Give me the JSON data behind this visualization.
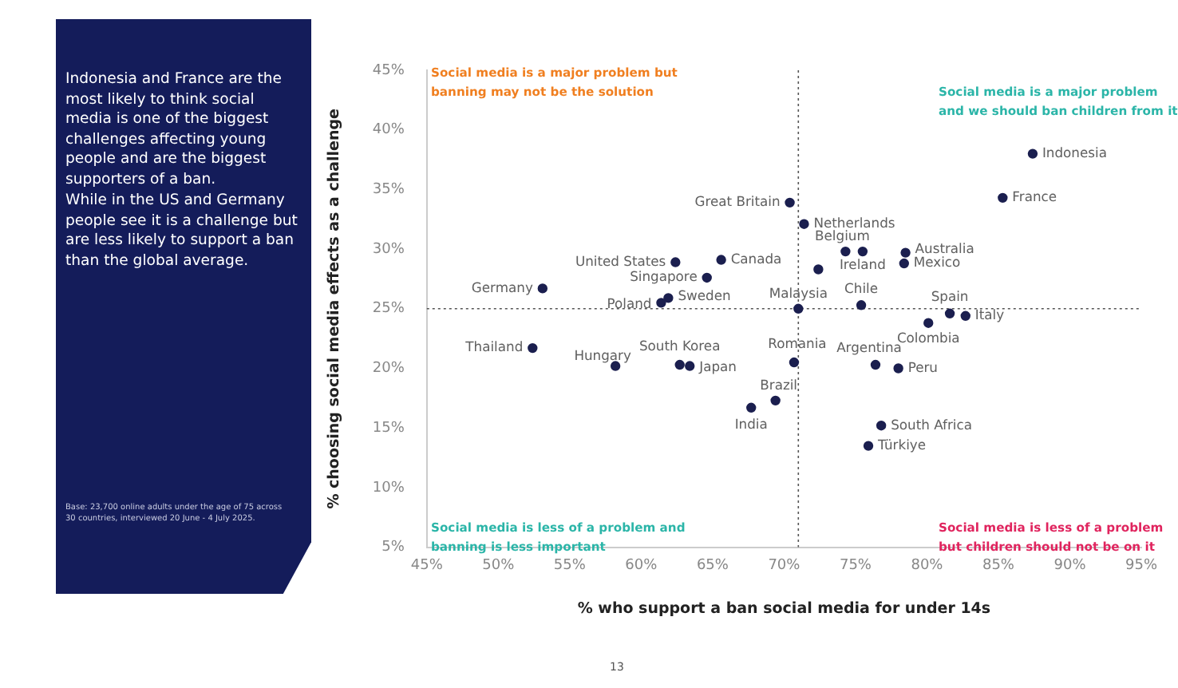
{
  "chart_data": {
    "type": "scatter",
    "xlabel": "% who support a ban social media for under 14s",
    "ylabel": "% choosing social media effects as a challenge",
    "xlim": [
      45,
      95
    ],
    "xticks": [
      {
        "value": 45,
        "label": "45%"
      },
      {
        "value": 50,
        "label": "50%"
      },
      {
        "value": 55,
        "label": "55%"
      },
      {
        "value": 60,
        "label": "60%"
      },
      {
        "value": 65,
        "label": "65%"
      },
      {
        "value": 70,
        "label": "70%"
      },
      {
        "value": 75,
        "label": "75%"
      },
      {
        "value": 80,
        "label": "80%"
      },
      {
        "value": 85,
        "label": "85%"
      },
      {
        "value": 90,
        "label": "90%"
      },
      {
        "value": 95,
        "label": "95%"
      }
    ],
    "ylim": [
      5,
      45
    ],
    "yticks": [
      {
        "value": 5,
        "label": "5%"
      },
      {
        "value": 10,
        "label": "10%"
      },
      {
        "value": 15,
        "label": "15%"
      },
      {
        "value": 20,
        "label": "20%"
      },
      {
        "value": 25,
        "label": "25%"
      },
      {
        "value": 30,
        "label": "30%"
      },
      {
        "value": 35,
        "label": "35%"
      },
      {
        "value": 40,
        "label": "40%"
      },
      {
        "value": 45,
        "label": "45%"
      }
    ],
    "grid": false,
    "legend": false,
    "marker": "circle",
    "ref_lines": [
      {
        "axis": "x",
        "value": 71,
        "line_style": "dotted"
      },
      {
        "axis": "y",
        "value": 25,
        "line_style": "dotted"
      }
    ],
    "series": [
      {
        "name": "Indonesia",
        "color": "#1b1f4f",
        "x": [
          87.4
        ],
        "values": [
          38.0
        ]
      },
      {
        "name": "France",
        "color": "#1b1f4f",
        "x": [
          85.3
        ],
        "values": [
          34.3
        ]
      },
      {
        "name": "Great Britain",
        "color": "#1b1f4f",
        "x": [
          70.4
        ],
        "values": [
          33.9
        ]
      },
      {
        "name": "Netherlands",
        "color": "#1b1f4f",
        "x": [
          71.4
        ],
        "values": [
          32.1
        ]
      },
      {
        "name": "Belgium",
        "color": "#1b1f4f",
        "x": [
          74.3
        ],
        "values": [
          29.8
        ]
      },
      {
        "name": "Ireland",
        "color": "#1b1f4f",
        "x": [
          75.5
        ],
        "values": [
          29.8
        ]
      },
      {
        "name": "Australia",
        "color": "#1b1f4f",
        "x": [
          78.5
        ],
        "values": [
          29.7
        ]
      },
      {
        "name": "Mexico",
        "color": "#1b1f4f",
        "x": [
          78.4
        ],
        "values": [
          28.8
        ]
      },
      {
        "name": "United States",
        "color": "#1b1f4f",
        "x": [
          62.4
        ],
        "values": [
          28.9
        ]
      },
      {
        "name": "Canada",
        "color": "#1b1f4f",
        "x": [
          65.6
        ],
        "values": [
          29.1
        ]
      },
      {
        "name": "Singapore",
        "color": "#1b1f4f",
        "x": [
          64.6
        ],
        "values": [
          27.6
        ]
      },
      {
        "name": "Germany",
        "color": "#1b1f4f",
        "x": [
          53.1
        ],
        "values": [
          26.7
        ]
      },
      {
        "name": "Poland",
        "color": "#1b1f4f",
        "x": [
          61.4
        ],
        "values": [
          25.5
        ]
      },
      {
        "name": "Sweden",
        "color": "#1b1f4f",
        "x": [
          61.9
        ],
        "values": [
          25.9
        ]
      },
      {
        "name": "Malaysia",
        "color": "#1b1f4f",
        "x": [
          71.0
        ],
        "values": [
          25.0
        ]
      },
      {
        "name": "Chile",
        "color": "#1b1f4f",
        "x": [
          75.4
        ],
        "values": [
          25.3
        ]
      },
      {
        "name": "Spain",
        "color": "#1b1f4f",
        "x": [
          81.6
        ],
        "values": [
          24.6
        ]
      },
      {
        "name": "Italy",
        "color": "#1b1f4f",
        "x": [
          82.7
        ],
        "values": [
          24.4
        ]
      },
      {
        "name": "Colombia",
        "color": "#1b1f4f",
        "x": [
          80.1
        ],
        "values": [
          23.8
        ]
      },
      {
        "name": "Thailand",
        "color": "#1b1f4f",
        "x": [
          52.4
        ],
        "values": [
          21.7
        ]
      },
      {
        "name": "Hungary",
        "color": "#1b1f4f",
        "x": [
          58.2
        ],
        "values": [
          20.2
        ]
      },
      {
        "name": "South Korea",
        "color": "#1b1f4f",
        "x": [
          62.7
        ],
        "values": [
          20.3
        ]
      },
      {
        "name": "Japan",
        "color": "#1b1f4f",
        "x": [
          63.4
        ],
        "values": [
          20.2
        ]
      },
      {
        "name": "Romania",
        "color": "#1b1f4f",
        "x": [
          70.7
        ],
        "values": [
          20.5
        ]
      },
      {
        "name": "Argentina",
        "color": "#1b1f4f",
        "x": [
          76.4
        ],
        "values": [
          20.3
        ]
      },
      {
        "name": "Peru",
        "color": "#1b1f4f",
        "x": [
          78.0
        ],
        "values": [
          20.0
        ]
      },
      {
        "name": "Brazil",
        "color": "#1b1f4f",
        "x": [
          69.4
        ],
        "values": [
          17.3
        ]
      },
      {
        "name": "India",
        "color": "#1b1f4f",
        "x": [
          67.7
        ],
        "values": [
          16.7
        ]
      },
      {
        "name": "South Africa",
        "color": "#1b1f4f",
        "x": [
          76.8
        ],
        "values": [
          15.2
        ]
      },
      {
        "name": "Türkiye",
        "color": "#1b1f4f",
        "x": [
          75.9
        ],
        "values": [
          13.5
        ]
      },
      {
        "color": "#1b1f4f",
        "x": [
          72.4
        ],
        "values": [
          28.3
        ]
      }
    ],
    "annotations": [
      "Social media is a major problem but banning may not be the solution",
      "Social media is a major problem and we should ban children from it",
      "Social media is less of a problem and banning is less important",
      "Social media is less of a problem but children should not be on it",
      "Indonesia and France are the most likely to think social media is one of the biggest challenges affecting young people and are the biggest supporters of a ban.",
      "While in the US and Germany people see it is a challenge but are less likely to support a ban than the global average.",
      "Base: 23,700 online adults under the age of 75 across 30 countries, interviewed 20 June - 4 July 2025.",
      "13"
    ]
  }
}
